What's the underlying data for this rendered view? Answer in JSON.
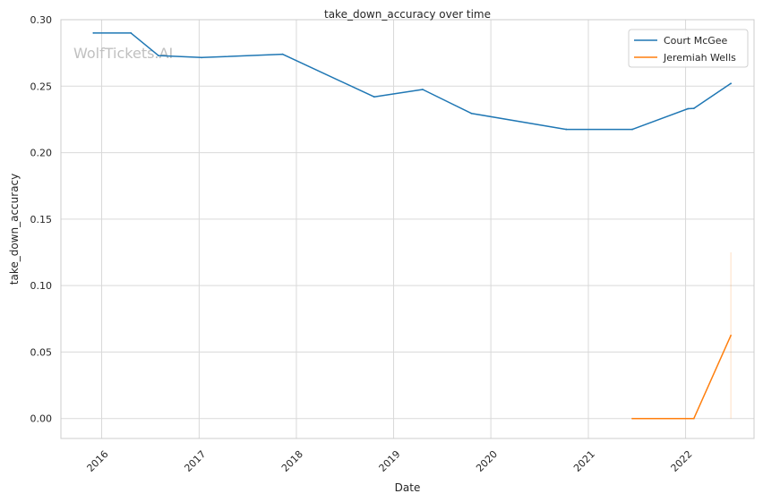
{
  "chart_data": {
    "type": "line",
    "title": "take_down_accuracy over time",
    "xlabel": "Date",
    "ylabel": "take_down_accuracy",
    "watermark": "WolfTickets.AI",
    "xlim": [
      "2015-08-01",
      "2022-09-15"
    ],
    "ylim": [
      -0.015,
      0.3
    ],
    "x_ticks": [
      "2016-01-01",
      "2017-01-01",
      "2018-01-01",
      "2019-01-01",
      "2020-01-01",
      "2021-01-01",
      "2022-01-01"
    ],
    "x_tick_labels": [
      "2016",
      "2017",
      "2018",
      "2019",
      "2020",
      "2021",
      "2022"
    ],
    "y_ticks": [
      0.0,
      0.05,
      0.1,
      0.15,
      0.2,
      0.25,
      0.3
    ],
    "y_tick_labels": [
      "0.00",
      "0.05",
      "0.10",
      "0.15",
      "0.20",
      "0.25",
      "0.30"
    ],
    "grid": true,
    "legend_position": "top-right",
    "series": [
      {
        "name": "Court McGee",
        "color": "#1f77b4",
        "x": [
          "2015-12-01",
          "2016-04-20",
          "2016-08-01",
          "2017-01-10",
          "2017-11-10",
          "2018-10-20",
          "2019-04-20",
          "2019-10-20",
          "2020-10-10",
          "2021-06-15",
          "2022-01-10",
          "2022-02-01",
          "2022-06-20"
        ],
        "values": [
          0.29,
          0.29,
          0.273,
          0.2715,
          0.274,
          0.242,
          0.2475,
          0.2295,
          0.2175,
          0.2175,
          0.233,
          0.2333,
          0.252
        ]
      },
      {
        "name": "Jeremiah Wells",
        "color": "#ff7f0e",
        "x": [
          "2021-06-15",
          "2022-02-01",
          "2022-06-20"
        ],
        "values": [
          0.0,
          0.0,
          0.0625
        ],
        "band": {
          "x": "2022-06-20",
          "low": 0.0,
          "high": 0.125
        }
      }
    ]
  }
}
